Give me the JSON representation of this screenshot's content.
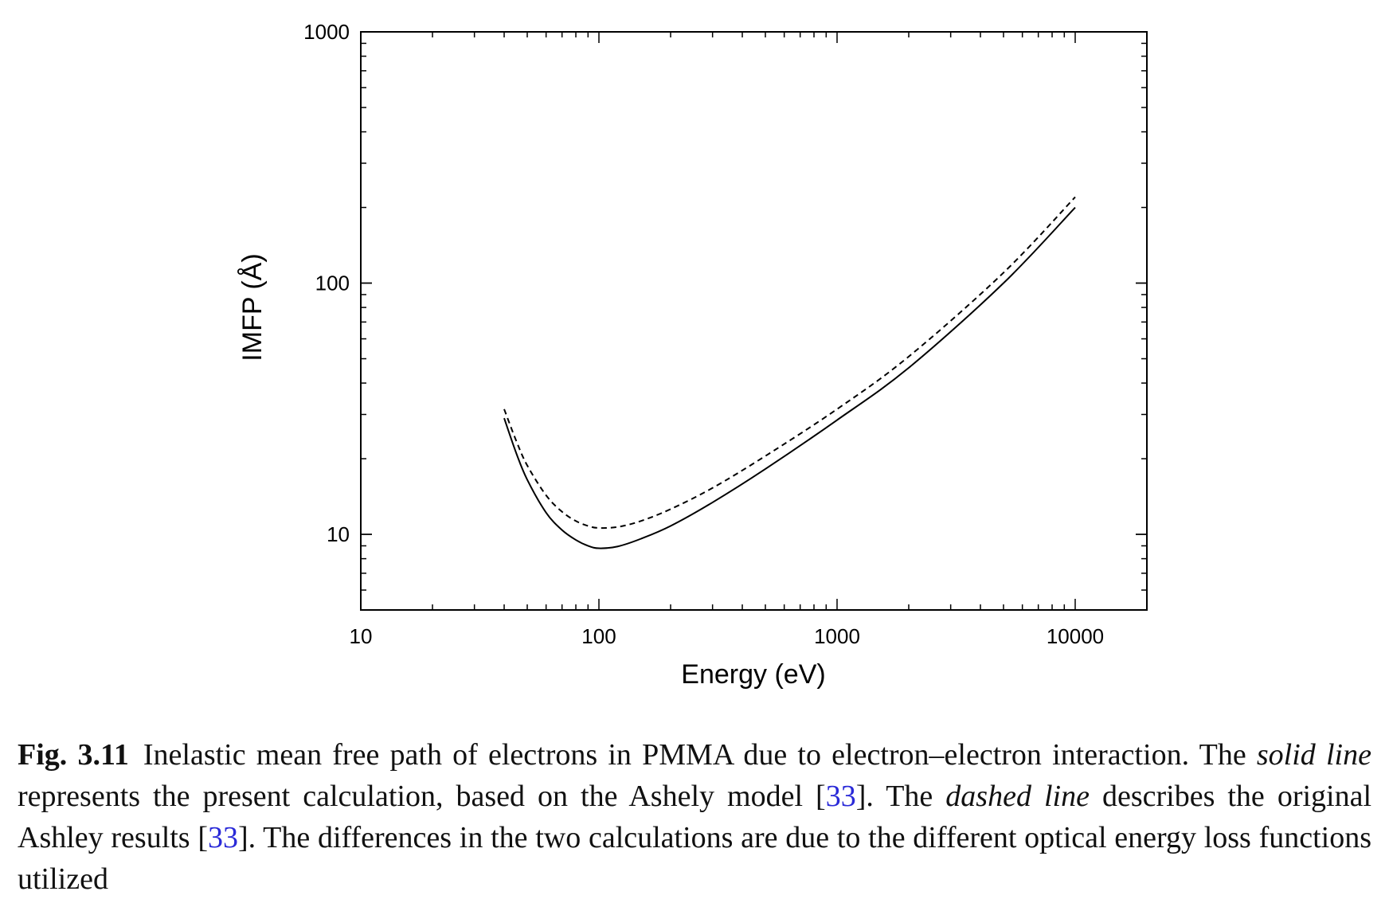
{
  "chart_data": {
    "type": "line",
    "xscale": "log",
    "yscale": "log",
    "xlim": [
      10,
      20000
    ],
    "ylim": [
      5,
      1000
    ],
    "xlabel": "Energy (eV)",
    "ylabel": "IMFP (Å)",
    "xticks": [
      "10",
      "100",
      "1000",
      "10000"
    ],
    "yticks": [
      "10",
      "100",
      "1000"
    ],
    "grid": false,
    "series": [
      {
        "style": "solid",
        "x": [
          40,
          45,
          50,
          60,
          70,
          80,
          90,
          100,
          120,
          150,
          200,
          300,
          500,
          1000,
          2000,
          5000,
          10000
        ],
        "y": [
          29,
          21,
          16.5,
          12.2,
          10.4,
          9.5,
          9.0,
          8.8,
          8.95,
          9.6,
          10.8,
          13.4,
          18.2,
          28.5,
          46,
          100,
          200
        ]
      },
      {
        "style": "dashed",
        "x": [
          40,
          45,
          50,
          60,
          70,
          80,
          90,
          100,
          120,
          150,
          200,
          300,
          500,
          1000,
          2000,
          5000,
          10000
        ],
        "y": [
          31.5,
          23.5,
          18.8,
          14.3,
          12.3,
          11.3,
          10.8,
          10.6,
          10.7,
          11.3,
          12.6,
          15.3,
          20.5,
          31.5,
          51,
          110,
          220
        ]
      }
    ]
  },
  "caption": {
    "label": "Fig. 3.11",
    "seg1": "Inelastic mean free path of electrons in PMMA due to electron–electron interaction. The ",
    "seg2": "solid line",
    "seg3": " represents the present calculation, based on the Ashely model [",
    "ref1": "33",
    "seg4": "]. The ",
    "seg5": "dashed line",
    "seg6": " describes the original Ashley results [",
    "ref2": "33",
    "seg7": "]. The differences in the two calculations are due to the different optical energy loss functions utilized"
  }
}
